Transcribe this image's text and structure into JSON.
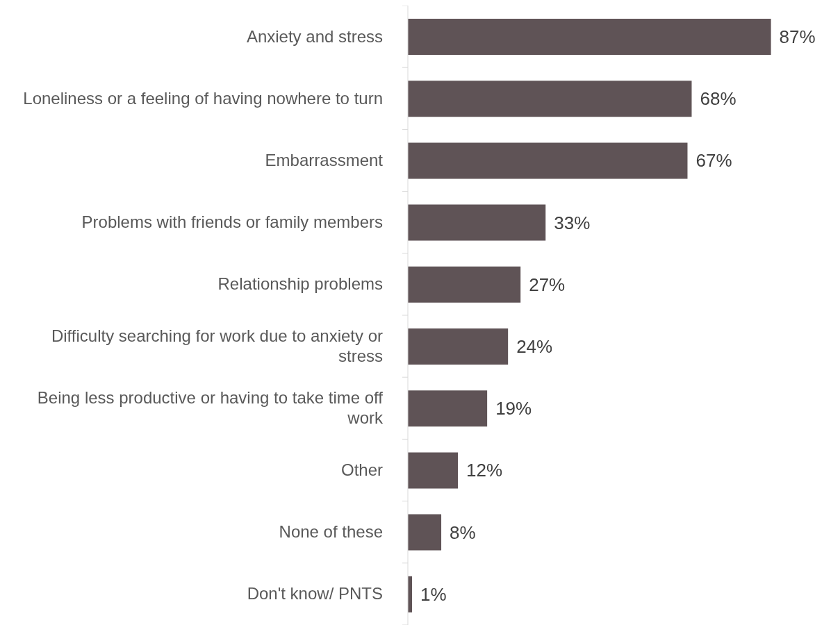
{
  "chart_data": {
    "type": "bar",
    "orientation": "horizontal",
    "categories": [
      "Anxiety and stress",
      "Loneliness or a feeling of having nowhere to turn",
      "Embarrassment",
      "Problems with friends or family members",
      "Relationship problems",
      "Difficulty searching for work due to anxiety or stress",
      "Being less productive or having to take time off work",
      "Other",
      "None of these",
      "Don't know/ PNTS"
    ],
    "values": [
      87,
      68,
      67,
      33,
      27,
      24,
      19,
      12,
      8,
      1
    ],
    "value_labels": [
      "87%",
      "68%",
      "67%",
      "33%",
      "27%",
      "24%",
      "19%",
      "12%",
      "8%",
      "1%"
    ],
    "color": "#5f5356",
    "grid": false,
    "legend": false
  }
}
